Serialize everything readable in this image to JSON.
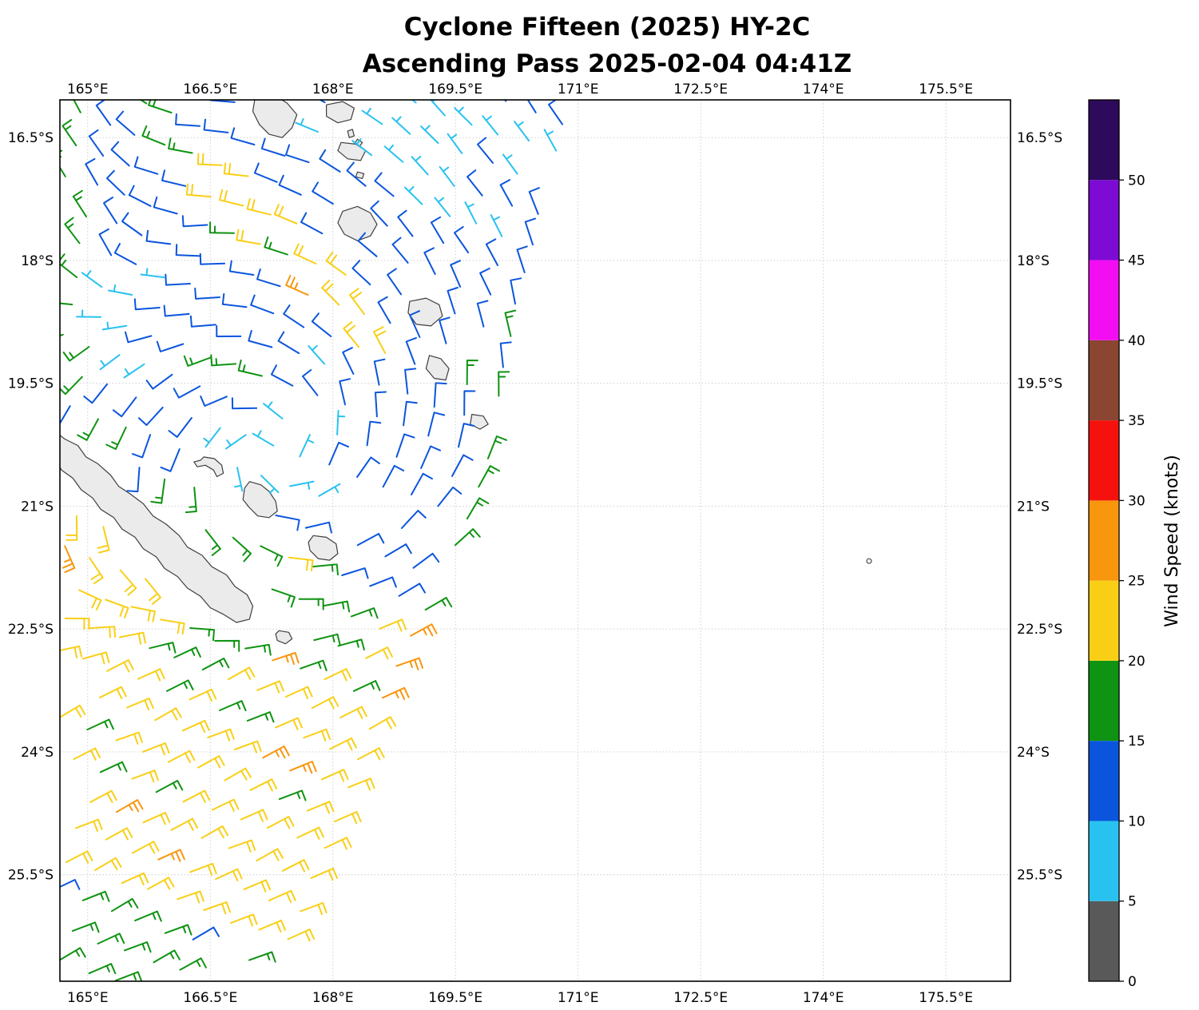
{
  "title": {
    "line1": "Cyclone Fifteen (2025) HY-2C",
    "line2": "Ascending Pass 2025-02-04 04:41Z"
  },
  "axes": {
    "lon_ticks": [
      {
        "value": 165.0,
        "label": "165°E"
      },
      {
        "value": 166.5,
        "label": "166.5°E"
      },
      {
        "value": 168.0,
        "label": "168°E"
      },
      {
        "value": 169.5,
        "label": "169.5°E"
      },
      {
        "value": 171.0,
        "label": "171°E"
      },
      {
        "value": 172.5,
        "label": "172.5°E"
      },
      {
        "value": 174.0,
        "label": "174°E"
      },
      {
        "value": 175.5,
        "label": "175.5°E"
      }
    ],
    "lat_ticks": [
      {
        "value": 16.5,
        "label": "16.5°S"
      },
      {
        "value": 18.0,
        "label": "18°S"
      },
      {
        "value": 19.5,
        "label": "19.5°S"
      },
      {
        "value": 21.0,
        "label": "21°S"
      },
      {
        "value": 22.5,
        "label": "22.5°S"
      },
      {
        "value": 24.0,
        "label": "24°S"
      },
      {
        "value": 25.5,
        "label": "25.5°S"
      }
    ],
    "lon_range": [
      164.66,
      176.29
    ],
    "lat_range": [
      16.04,
      26.8
    ],
    "grid": true
  },
  "colorbar": {
    "label": "Wind Speed (knots)",
    "tick_values": [
      0,
      5,
      10,
      15,
      20,
      25,
      30,
      35,
      40,
      45,
      50
    ],
    "levels": [
      {
        "min": 0,
        "max": 5,
        "color": "#595959"
      },
      {
        "min": 5,
        "max": 10,
        "color": "#29c2f0"
      },
      {
        "min": 10,
        "max": 15,
        "color": "#0b55dd"
      },
      {
        "min": 15,
        "max": 20,
        "color": "#0f9312"
      },
      {
        "min": 20,
        "max": 25,
        "color": "#f9cf16"
      },
      {
        "min": 25,
        "max": 30,
        "color": "#f8960e"
      },
      {
        "min": 30,
        "max": 35,
        "color": "#f5120e"
      },
      {
        "min": 35,
        "max": 40,
        "color": "#8a4631"
      },
      {
        "min": 40,
        "max": 45,
        "color": "#f20df2"
      },
      {
        "min": 45,
        "max": 50,
        "color": "#7d0bd4"
      },
      {
        "min": 50,
        "max": 55,
        "color": "#2d0a5c"
      }
    ]
  },
  "chart_data": {
    "type": "wind_barb_map",
    "storm": "Cyclone Fifteen (2025)",
    "satellite": "HY-2C",
    "pass_type": "Ascending",
    "datetime_utc": "2025-02-04 04:41Z",
    "units": "knots",
    "observed_speed_range_kt": [
      5,
      30
    ],
    "cyclone_center": {
      "lon_e": 167.25,
      "lat_s": 20.35,
      "note": "light-wind (5-10 kt) core, clockwise SH rotation"
    },
    "swath": {
      "edge_points_lat_lon": [
        [
          15.9,
          171.05
        ],
        [
          16.04,
          171.0
        ],
        [
          17.0,
          170.75
        ],
        [
          18.0,
          170.5
        ],
        [
          19.5,
          170.15
        ],
        [
          20.6,
          169.95
        ],
        [
          21.6,
          169.6
        ],
        [
          22.6,
          169.05
        ],
        [
          23.6,
          168.6
        ],
        [
          24.6,
          168.25
        ],
        [
          25.7,
          167.8
        ],
        [
          26.85,
          167.35
        ],
        [
          28.4,
          166.8
        ]
      ],
      "row_dir_lonlat": [
        -0.94,
        -0.34
      ],
      "row_lat_start": 15.95,
      "row_lat_step": 0.37,
      "col_step_deg": 0.36,
      "cols": 36,
      "rows": 34
    },
    "default_knots": 12,
    "wind_zones": [
      {
        "type": "circle",
        "c": [
          167.25,
          20.35
        ],
        "r": 0.52,
        "kn": 8,
        "desc": "calm cyan core"
      },
      {
        "type": "seg",
        "a": [
          166.55,
          20.18
        ],
        "b": [
          168.28,
          20.95
        ],
        "r": 0.28,
        "kn": 8,
        "desc": "cyan strand SE of core"
      },
      {
        "type": "seg",
        "a": [
          165.25,
          18.35
        ],
        "b": [
          165.5,
          19.25
        ],
        "r": 0.28,
        "kn": 8,
        "desc": "west cyan streak"
      },
      {
        "type": "seg",
        "a": [
          168.45,
          16.0
        ],
        "b": [
          170.78,
          16.85
        ],
        "r": 0.3,
        "kn": 8,
        "desc": "north cyan streak"
      },
      {
        "type": "seg",
        "a": [
          168.65,
          16.62
        ],
        "b": [
          169.88,
          17.78
        ],
        "r": 0.23,
        "kn": 8,
        "desc": "second north cyan streak"
      },
      {
        "type": "circle",
        "c": [
          167.82,
          18.55
        ],
        "r": 0.2,
        "kn": 27,
        "desc": "orange pocket in NE yellow arc"
      },
      {
        "type": "seg",
        "a": [
          166.55,
          16.85
        ],
        "b": [
          167.6,
          17.9
        ],
        "r": 0.3,
        "kn": 22,
        "desc": "NE yellow arc (upper)"
      },
      {
        "type": "seg",
        "a": [
          167.6,
          17.9
        ],
        "b": [
          168.45,
          19.0
        ],
        "r": 0.28,
        "kn": 22,
        "desc": "NE yellow arc (lower)"
      },
      {
        "type": "circle",
        "c": [
          169.3,
          19.98
        ],
        "r": 0.16,
        "kn": 22,
        "desc": "yellow single near swath edge"
      },
      {
        "type": "circle",
        "c": [
          164.78,
          21.62
        ],
        "r": 0.22,
        "kn": 27,
        "desc": "orange barbs west edge"
      },
      {
        "type": "circle",
        "c": [
          167.1,
          23.95
        ],
        "r": 0.17,
        "kn": 27,
        "desc": "orange single SW field"
      },
      {
        "type": "edge",
        "dmax": 0.42,
        "lat": [
          22.4,
          23.6
        ],
        "kn": 27,
        "desc": "orange strip along swath edge"
      },
      {
        "type": "wedge",
        "base": 25.36,
        "slope": 0.4,
        "lon0": 164.66,
        "kn": 17,
        "desc": "green wedge far south"
      },
      {
        "type": "seg",
        "a": [
          165.95,
          22.9
        ],
        "b": [
          166.8,
          22.72
        ],
        "r": 0.36,
        "kn": 17,
        "desc": "green cluster south of New Caledonia"
      },
      {
        "type": "seg",
        "a": [
          166.3,
          20.92
        ],
        "b": [
          168.0,
          22.35
        ],
        "r": 0.4,
        "kn": 17,
        "desc": "green band NE of New Caledonia"
      },
      {
        "type": "seg",
        "a": [
          165.75,
          16.08
        ],
        "b": [
          166.9,
          17.28
        ],
        "r": 0.22,
        "kn": 17,
        "desc": "green diagonal band top"
      },
      {
        "type": "box",
        "lon": [
          164.6,
          165.02
        ],
        "lat": [
          15.9,
          19.55
        ],
        "kn": 17,
        "desc": "green column at west edge"
      },
      {
        "type": "circle",
        "c": [
          164.95,
          20.05
        ],
        "r": 0.3,
        "kn": 17,
        "desc": "green patch west"
      },
      {
        "type": "seg",
        "a": [
          166.55,
          19.15
        ],
        "b": [
          167.0,
          19.5
        ],
        "r": 0.28,
        "kn": 17,
        "desc": "green patch mid"
      },
      {
        "type": "edge",
        "dmax": 0.4,
        "lat": [
          18.55,
          22.45
        ],
        "kn": 17,
        "desc": "green strip along swath edge"
      },
      {
        "type": "south",
        "latmin": 22.38,
        "kn": 22,
        "desc": "yellow trade-wind field S of 22.4S"
      },
      {
        "type": "ncwest",
        "kn": 22,
        "desc": "yellow SW of New Caledonia"
      }
    ],
    "no_data_masks": [
      {
        "type": "seg",
        "a": [
          164.6,
          20.2
        ],
        "b": [
          167.0,
          22.4
        ],
        "r": 0.34,
        "desc": "New Caledonia land"
      },
      {
        "type": "circle",
        "c": [
          166.5,
          20.52
        ],
        "r": 0.2,
        "desc": "Ouvéa"
      },
      {
        "type": "circle",
        "c": [
          167.12,
          20.92
        ],
        "r": 0.26,
        "desc": "Lifou"
      },
      {
        "type": "circle",
        "c": [
          167.88,
          21.51
        ],
        "r": 0.24,
        "desc": "Maré"
      },
      {
        "type": "circle",
        "c": [
          167.4,
          22.6
        ],
        "r": 0.14,
        "desc": "Île des Pins"
      },
      {
        "type": "circle",
        "c": [
          167.3,
          16.22
        ],
        "r": 0.3,
        "desc": "Malakula"
      },
      {
        "type": "circle",
        "c": [
          168.09,
          16.19
        ],
        "r": 0.2,
        "desc": "Ambrym"
      },
      {
        "type": "circle",
        "c": [
          168.24,
          16.66
        ],
        "r": 0.17,
        "desc": "Epi"
      },
      {
        "type": "circle",
        "c": [
          168.3,
          17.55
        ],
        "r": 0.26,
        "desc": "Efate"
      },
      {
        "type": "circle",
        "c": [
          169.13,
          18.63
        ],
        "r": 0.26,
        "desc": "Erromango"
      },
      {
        "type": "circle",
        "c": [
          169.28,
          19.31
        ],
        "r": 0.2,
        "desc": "Tanna"
      },
      {
        "type": "circle",
        "c": [
          169.79,
          19.97
        ],
        "r": 0.14,
        "desc": "Aneityum"
      },
      {
        "type": "circle",
        "c": [
          168.35,
          21.1
        ],
        "r": 0.3,
        "desc": "rain-flag gap"
      }
    ],
    "islands": [
      {
        "name": "Grande Terre (New Caledonia)",
        "pts": [
          [
            164.55,
            20.05
          ],
          [
            164.72,
            20.18
          ],
          [
            164.88,
            20.26
          ],
          [
            164.98,
            20.4
          ],
          [
            165.12,
            20.48
          ],
          [
            165.28,
            20.62
          ],
          [
            165.38,
            20.76
          ],
          [
            165.52,
            20.85
          ],
          [
            165.68,
            20.97
          ],
          [
            165.8,
            21.12
          ],
          [
            165.96,
            21.22
          ],
          [
            166.12,
            21.36
          ],
          [
            166.22,
            21.5
          ],
          [
            166.4,
            21.6
          ],
          [
            166.52,
            21.74
          ],
          [
            166.7,
            21.84
          ],
          [
            166.8,
            21.98
          ],
          [
            166.95,
            22.08
          ],
          [
            167.02,
            22.22
          ],
          [
            166.98,
            22.38
          ],
          [
            166.82,
            22.42
          ],
          [
            166.66,
            22.32
          ],
          [
            166.5,
            22.24
          ],
          [
            166.38,
            22.1
          ],
          [
            166.22,
            22.0
          ],
          [
            166.1,
            21.86
          ],
          [
            165.94,
            21.76
          ],
          [
            165.84,
            21.62
          ],
          [
            165.68,
            21.52
          ],
          [
            165.58,
            21.38
          ],
          [
            165.42,
            21.28
          ],
          [
            165.32,
            21.14
          ],
          [
            165.16,
            21.04
          ],
          [
            165.06,
            20.9
          ],
          [
            164.92,
            20.8
          ],
          [
            164.82,
            20.66
          ],
          [
            164.68,
            20.56
          ],
          [
            164.6,
            20.42
          ],
          [
            164.48,
            20.32
          ],
          [
            164.5,
            20.15
          ]
        ]
      },
      {
        "name": "Ouvéa",
        "pts": [
          [
            166.42,
            20.4
          ],
          [
            166.55,
            20.42
          ],
          [
            166.64,
            20.5
          ],
          [
            166.66,
            20.6
          ],
          [
            166.58,
            20.64
          ],
          [
            166.54,
            20.56
          ],
          [
            166.44,
            20.5
          ],
          [
            166.34,
            20.52
          ],
          [
            166.3,
            20.46
          ],
          [
            166.38,
            20.44
          ]
        ]
      },
      {
        "name": "Lifou",
        "pts": [
          [
            166.98,
            20.7
          ],
          [
            167.12,
            20.74
          ],
          [
            167.22,
            20.82
          ],
          [
            167.3,
            20.94
          ],
          [
            167.32,
            21.06
          ],
          [
            167.22,
            21.14
          ],
          [
            167.08,
            21.12
          ],
          [
            166.98,
            21.02
          ],
          [
            166.9,
            20.92
          ],
          [
            166.92,
            20.78
          ]
        ]
      },
      {
        "name": "Maré",
        "pts": [
          [
            167.76,
            21.36
          ],
          [
            167.92,
            21.38
          ],
          [
            168.04,
            21.46
          ],
          [
            168.06,
            21.58
          ],
          [
            167.96,
            21.66
          ],
          [
            167.82,
            21.64
          ],
          [
            167.72,
            21.54
          ],
          [
            167.7,
            21.44
          ]
        ]
      },
      {
        "name": "Île des Pins",
        "pts": [
          [
            167.34,
            22.52
          ],
          [
            167.46,
            22.54
          ],
          [
            167.5,
            22.62
          ],
          [
            167.42,
            22.68
          ],
          [
            167.32,
            22.64
          ],
          [
            167.3,
            22.56
          ]
        ]
      },
      {
        "name": "Malakula",
        "pts": [
          [
            167.05,
            16.0
          ],
          [
            167.28,
            15.98
          ],
          [
            167.44,
            16.08
          ],
          [
            167.56,
            16.22
          ],
          [
            167.5,
            16.38
          ],
          [
            167.38,
            16.5
          ],
          [
            167.22,
            16.46
          ],
          [
            167.1,
            16.34
          ],
          [
            167.02,
            16.18
          ]
        ]
      },
      {
        "name": "Ambrym",
        "pts": [
          [
            167.92,
            16.1
          ],
          [
            168.12,
            16.06
          ],
          [
            168.26,
            16.14
          ],
          [
            168.22,
            16.28
          ],
          [
            168.06,
            16.32
          ],
          [
            167.92,
            16.24
          ]
        ]
      },
      {
        "name": "Paama",
        "pts": [
          [
            168.18,
            16.42
          ],
          [
            168.24,
            16.4
          ],
          [
            168.26,
            16.48
          ],
          [
            168.2,
            16.5
          ]
        ]
      },
      {
        "name": "Lopevi",
        "pts": [
          [
            168.3,
            16.52
          ],
          [
            168.36,
            16.56
          ],
          [
            168.32,
            16.62
          ],
          [
            168.26,
            16.58
          ]
        ]
      },
      {
        "name": "Epi",
        "pts": [
          [
            168.1,
            16.56
          ],
          [
            168.28,
            16.58
          ],
          [
            168.4,
            16.66
          ],
          [
            168.34,
            16.78
          ],
          [
            168.18,
            16.76
          ],
          [
            168.06,
            16.66
          ]
        ]
      },
      {
        "name": "Tongoa",
        "pts": [
          [
            168.3,
            16.92
          ],
          [
            168.38,
            16.94
          ],
          [
            168.36,
            17.0
          ],
          [
            168.28,
            16.98
          ]
        ]
      },
      {
        "name": "Efate",
        "pts": [
          [
            168.12,
            17.4
          ],
          [
            168.3,
            17.34
          ],
          [
            168.46,
            17.42
          ],
          [
            168.54,
            17.56
          ],
          [
            168.46,
            17.7
          ],
          [
            168.3,
            17.76
          ],
          [
            168.14,
            17.68
          ],
          [
            168.06,
            17.54
          ]
        ]
      },
      {
        "name": "Erromango",
        "pts": [
          [
            168.94,
            18.5
          ],
          [
            169.14,
            18.46
          ],
          [
            169.3,
            18.54
          ],
          [
            169.34,
            18.68
          ],
          [
            169.2,
            18.8
          ],
          [
            169.02,
            18.78
          ],
          [
            168.92,
            18.64
          ]
        ]
      },
      {
        "name": "Tanna",
        "pts": [
          [
            169.18,
            19.16
          ],
          [
            169.32,
            19.2
          ],
          [
            169.42,
            19.32
          ],
          [
            169.38,
            19.46
          ],
          [
            169.24,
            19.44
          ],
          [
            169.14,
            19.32
          ]
        ]
      },
      {
        "name": "Aneityum",
        "pts": [
          [
            169.7,
            19.88
          ],
          [
            169.84,
            19.9
          ],
          [
            169.9,
            20.0
          ],
          [
            169.8,
            20.06
          ],
          [
            169.68,
            20.0
          ]
        ]
      }
    ],
    "tiny_island": {
      "name": "islet",
      "lon": 174.56,
      "lat": 21.67
    }
  }
}
